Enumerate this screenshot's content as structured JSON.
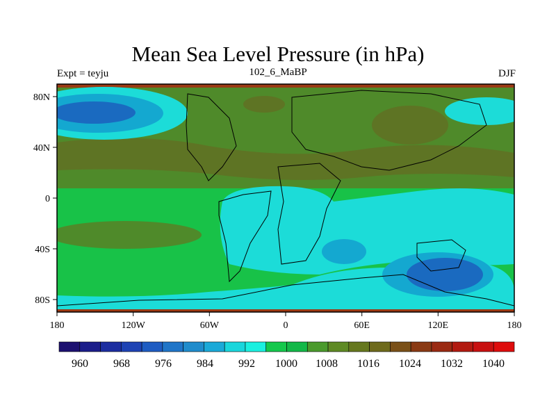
{
  "title": "Mean Sea Level Pressure (in hPa)",
  "subtitle_left": "Expt = teyju",
  "subtitle_center": "102_6_MaBP",
  "subtitle_right": "DJF",
  "axes": {
    "x_ticks": [
      "180",
      "120W",
      "60W",
      "0",
      "60E",
      "120E",
      "180"
    ],
    "y_ticks": [
      "80N",
      "40N",
      "0",
      "40S",
      "80S"
    ]
  },
  "colorbar": {
    "colors": [
      "#1c1070",
      "#1b1d8a",
      "#1c2da0",
      "#1e43b4",
      "#1e5cc2",
      "#1f75c8",
      "#1f8ccc",
      "#1aa9d8",
      "#19d6dc",
      "#1af0e0",
      "#14c84c",
      "#12b848",
      "#4a9a2c",
      "#5e8a24",
      "#66781e",
      "#6e6a1c",
      "#7a5018",
      "#8a3a14",
      "#9a2a12",
      "#b21a10",
      "#c81010",
      "#de0c0c"
    ],
    "labels": [
      "960",
      "968",
      "976",
      "984",
      "992",
      "1000",
      "1008",
      "1016",
      "1024",
      "1032",
      "1040"
    ]
  },
  "colors": {
    "ridge": "#5a6a24",
    "high": "#4f8a2a",
    "mid": "#18c248",
    "low": "#1cdcd8",
    "lower": "#14a8d0",
    "lowest": "#1a6ac0",
    "polar": "#9a3a14"
  }
}
